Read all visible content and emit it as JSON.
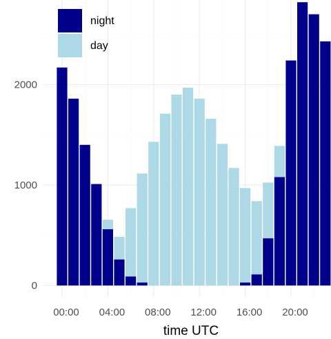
{
  "chart_data": {
    "type": "bar",
    "stacked": true,
    "xlabel": "time UTC",
    "ylabel": "",
    "hours": [
      0,
      1,
      2,
      3,
      4,
      5,
      6,
      7,
      8,
      9,
      10,
      11,
      12,
      13,
      14,
      15,
      16,
      17,
      18,
      19,
      20,
      21,
      22,
      23
    ],
    "x_tick_labels": [
      "00:00",
      "04:00",
      "08:00",
      "12:00",
      "16:00",
      "20:00"
    ],
    "x_tick_hours": [
      0,
      4,
      8,
      12,
      16,
      20
    ],
    "y_ticks": [
      0,
      1000,
      2000
    ],
    "ylim": [
      0,
      2800
    ],
    "grid": true,
    "legend_position": "top-left",
    "series": [
      {
        "name": "night",
        "color": "#00008b",
        "values": [
          2170,
          1860,
          1400,
          1010,
          560,
          260,
          90,
          30,
          0,
          0,
          0,
          0,
          0,
          0,
          0,
          0,
          30,
          110,
          470,
          1080,
          2240,
          2820,
          2700,
          2430
        ]
      },
      {
        "name": "day",
        "color": "#add8e6",
        "values": [
          0,
          0,
          0,
          0,
          95,
          225,
          680,
          1085,
          1430,
          1710,
          1900,
          1970,
          1860,
          1660,
          1410,
          1170,
          940,
          730,
          555,
          310,
          0,
          0,
          0,
          0
        ]
      }
    ]
  }
}
